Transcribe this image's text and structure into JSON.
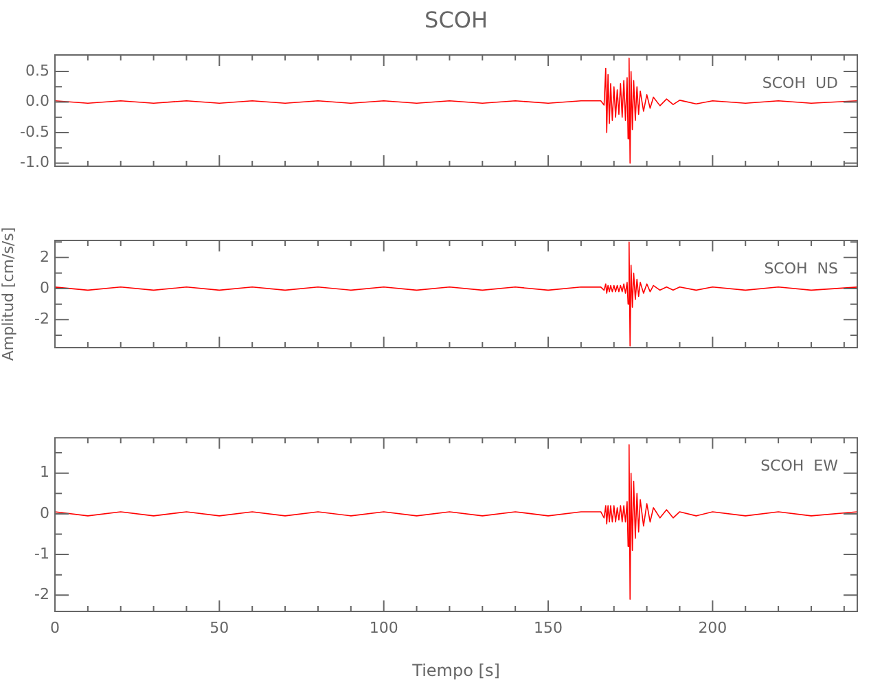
{
  "chart_data": [
    {
      "type": "line",
      "title": "SCOH",
      "annotations": [
        "SCOH  UD"
      ],
      "tick_labels": "y",
      "xlim": [
        0,
        244
      ],
      "xticks": [
        0,
        {
          "value": 10,
          "label": null
        },
        {
          "value": 20,
          "label": null
        },
        {
          "value": 30,
          "label": null
        },
        {
          "value": 40,
          "label": null
        },
        50,
        {
          "value": 60,
          "label": null
        },
        {
          "value": 70,
          "label": null
        },
        {
          "value": 80,
          "label": null
        },
        {
          "value": 90,
          "label": null
        },
        100,
        {
          "value": 110,
          "label": null
        },
        {
          "value": 120,
          "label": null
        },
        {
          "value": 130,
          "label": null
        },
        {
          "value": 140,
          "label": null
        },
        150,
        {
          "value": 160,
          "label": null
        },
        {
          "value": 170,
          "label": null
        },
        {
          "value": 180,
          "label": null
        },
        {
          "value": 190,
          "label": null
        },
        200,
        {
          "value": 210,
          "label": null
        },
        {
          "value": 220,
          "label": null
        },
        {
          "value": 230,
          "label": null
        },
        {
          "value": 240,
          "label": null
        }
      ],
      "ylim": [
        -1.05,
        0.77
      ],
      "yticks": [
        {
          "value": 0.5,
          "label": "0.5"
        },
        {
          "value": 0.25,
          "label": null
        },
        {
          "value": 0,
          "label": "0.0"
        },
        {
          "value": -0.25,
          "label": null
        },
        {
          "value": -0.5,
          "label": "-0.5"
        },
        {
          "value": -0.75,
          "label": null
        },
        {
          "value": -1,
          "label": "-1.0"
        }
      ],
      "series": [
        {
          "color": "#ff0000",
          "x": [
            0,
            10,
            20,
            30,
            40,
            50,
            60,
            70,
            80,
            90,
            100,
            110,
            120,
            130,
            140,
            150,
            160,
            166,
            167,
            167.5,
            167.8,
            168.2,
            168.6,
            169,
            169.5,
            170,
            170.5,
            171,
            171.5,
            172,
            172.5,
            173,
            173.5,
            174,
            174.3,
            174.6,
            174.9,
            175.2,
            175.6,
            176,
            176.5,
            177,
            177.5,
            178,
            179,
            180,
            181,
            182,
            184,
            186,
            188,
            190,
            195,
            200,
            210,
            220,
            230,
            244
          ],
          "values": [
            0.02,
            -0.02,
            0.02,
            -0.02,
            0.02,
            -0.02,
            0.02,
            -0.02,
            0.02,
            -0.02,
            0.02,
            -0.02,
            0.02,
            -0.02,
            0.02,
            -0.02,
            0.02,
            0.02,
            -0.05,
            0.55,
            -0.5,
            0.45,
            -0.35,
            0.3,
            -0.3,
            0.25,
            -0.25,
            0.2,
            -0.2,
            0.3,
            -0.25,
            0.35,
            -0.3,
            0.4,
            -0.6,
            0.72,
            -1.0,
            0.5,
            -0.45,
            0.35,
            -0.3,
            0.25,
            -0.2,
            0.18,
            -0.15,
            0.12,
            -0.1,
            0.08,
            -0.06,
            0.05,
            -0.04,
            0.03,
            -0.03,
            0.02,
            -0.02,
            0.02,
            -0.02,
            0.02
          ]
        }
      ]
    },
    {
      "type": "line",
      "ylabel": "Amplitud [cm/s/s]",
      "annotations": [
        "SCOH  NS"
      ],
      "tick_labels": "y",
      "xlim": [
        0,
        244
      ],
      "xticks": [
        0,
        {
          "value": 10,
          "label": null
        },
        {
          "value": 20,
          "label": null
        },
        {
          "value": 30,
          "label": null
        },
        {
          "value": 40,
          "label": null
        },
        50,
        {
          "value": 60,
          "label": null
        },
        {
          "value": 70,
          "label": null
        },
        {
          "value": 80,
          "label": null
        },
        {
          "value": 90,
          "label": null
        },
        100,
        {
          "value": 110,
          "label": null
        },
        {
          "value": 120,
          "label": null
        },
        {
          "value": 130,
          "label": null
        },
        {
          "value": 140,
          "label": null
        },
        150,
        {
          "value": 160,
          "label": null
        },
        {
          "value": 170,
          "label": null
        },
        {
          "value": 180,
          "label": null
        },
        {
          "value": 190,
          "label": null
        },
        200,
        {
          "value": 210,
          "label": null
        },
        {
          "value": 220,
          "label": null
        },
        {
          "value": 230,
          "label": null
        },
        {
          "value": 240,
          "label": null
        }
      ],
      "ylim": [
        -3.8,
        3.1
      ],
      "yticks": [
        {
          "value": 3,
          "label": null
        },
        2,
        {
          "value": 1,
          "label": null
        },
        0,
        {
          "value": -1,
          "label": null
        },
        -2,
        {
          "value": -3,
          "label": null
        }
      ],
      "series": [
        {
          "color": "#ff0000",
          "x": [
            0,
            10,
            20,
            30,
            40,
            50,
            60,
            70,
            80,
            90,
            100,
            110,
            120,
            130,
            140,
            150,
            160,
            166,
            167,
            167.5,
            167.8,
            168.2,
            168.6,
            169,
            169.5,
            170,
            170.5,
            171,
            171.5,
            172,
            172.5,
            173,
            173.5,
            174,
            174.3,
            174.6,
            174.9,
            175.2,
            175.6,
            176,
            176.5,
            177,
            177.5,
            178,
            179,
            180,
            181,
            182,
            184,
            186,
            188,
            190,
            195,
            200,
            210,
            220,
            230,
            244
          ],
          "values": [
            0.1,
            -0.1,
            0.1,
            -0.1,
            0.1,
            -0.1,
            0.1,
            -0.1,
            0.1,
            -0.1,
            0.1,
            -0.1,
            0.1,
            -0.1,
            0.1,
            -0.1,
            0.1,
            0.1,
            -0.1,
            0.3,
            -0.3,
            0.2,
            -0.2,
            0.2,
            -0.2,
            0.2,
            -0.2,
            0.2,
            -0.2,
            0.2,
            -0.2,
            0.3,
            -0.3,
            0.4,
            -1.0,
            3.0,
            -3.7,
            1.5,
            -1.2,
            1.0,
            -0.7,
            0.6,
            -0.5,
            0.4,
            -0.3,
            0.3,
            -0.2,
            0.2,
            -0.1,
            0.1,
            -0.1,
            0.1,
            -0.1,
            0.1,
            -0.1,
            0.1,
            -0.1,
            0.1
          ]
        }
      ]
    },
    {
      "type": "line",
      "xlabel": "Tiempo [s]",
      "annotations": [
        "SCOH  EW"
      ],
      "xlim": [
        0,
        244
      ],
      "xticks": [
        0,
        {
          "value": 10,
          "label": null
        },
        {
          "value": 20,
          "label": null
        },
        {
          "value": 30,
          "label": null
        },
        {
          "value": 40,
          "label": null
        },
        50,
        {
          "value": 60,
          "label": null
        },
        {
          "value": 70,
          "label": null
        },
        {
          "value": 80,
          "label": null
        },
        {
          "value": 90,
          "label": null
        },
        100,
        {
          "value": 110,
          "label": null
        },
        {
          "value": 120,
          "label": null
        },
        {
          "value": 130,
          "label": null
        },
        {
          "value": 140,
          "label": null
        },
        150,
        {
          "value": 160,
          "label": null
        },
        {
          "value": 170,
          "label": null
        },
        {
          "value": 180,
          "label": null
        },
        {
          "value": 190,
          "label": null
        },
        200,
        {
          "value": 210,
          "label": null
        },
        {
          "value": 220,
          "label": null
        },
        {
          "value": 230,
          "label": null
        },
        {
          "value": 240,
          "label": null
        }
      ],
      "ylim": [
        -2.4,
        1.87
      ],
      "yticks": [
        {
          "value": 1.5,
          "label": null
        },
        1,
        {
          "value": 0.5,
          "label": null
        },
        0,
        {
          "value": -0.5,
          "label": null
        },
        -1,
        {
          "value": -1.5,
          "label": null
        },
        -2
      ],
      "series": [
        {
          "color": "#ff0000",
          "x": [
            0,
            10,
            20,
            30,
            40,
            50,
            60,
            70,
            80,
            90,
            100,
            110,
            120,
            130,
            140,
            150,
            160,
            166,
            167,
            167.5,
            167.8,
            168.2,
            168.6,
            169,
            169.5,
            170,
            170.5,
            171,
            171.5,
            172,
            172.5,
            173,
            173.5,
            174,
            174.3,
            174.6,
            174.9,
            175.2,
            175.6,
            176,
            176.5,
            177,
            177.5,
            178,
            179,
            180,
            181,
            182,
            184,
            186,
            188,
            190,
            195,
            200,
            210,
            220,
            230,
            244
          ],
          "values": [
            0.05,
            -0.05,
            0.05,
            -0.05,
            0.05,
            -0.05,
            0.05,
            -0.05,
            0.05,
            -0.05,
            0.05,
            -0.05,
            0.05,
            -0.05,
            0.05,
            -0.05,
            0.05,
            0.05,
            -0.1,
            0.2,
            -0.25,
            0.2,
            -0.2,
            0.2,
            -0.2,
            0.2,
            -0.2,
            0.15,
            -0.15,
            0.2,
            -0.2,
            0.2,
            -0.2,
            0.3,
            -0.8,
            1.7,
            -2.1,
            1.0,
            -0.9,
            0.8,
            -0.6,
            0.5,
            -0.45,
            0.35,
            -0.3,
            0.25,
            -0.2,
            0.15,
            -0.1,
            0.1,
            -0.1,
            0.05,
            -0.05,
            0.05,
            -0.05,
            0.05,
            -0.05,
            0.05
          ]
        }
      ]
    }
  ]
}
